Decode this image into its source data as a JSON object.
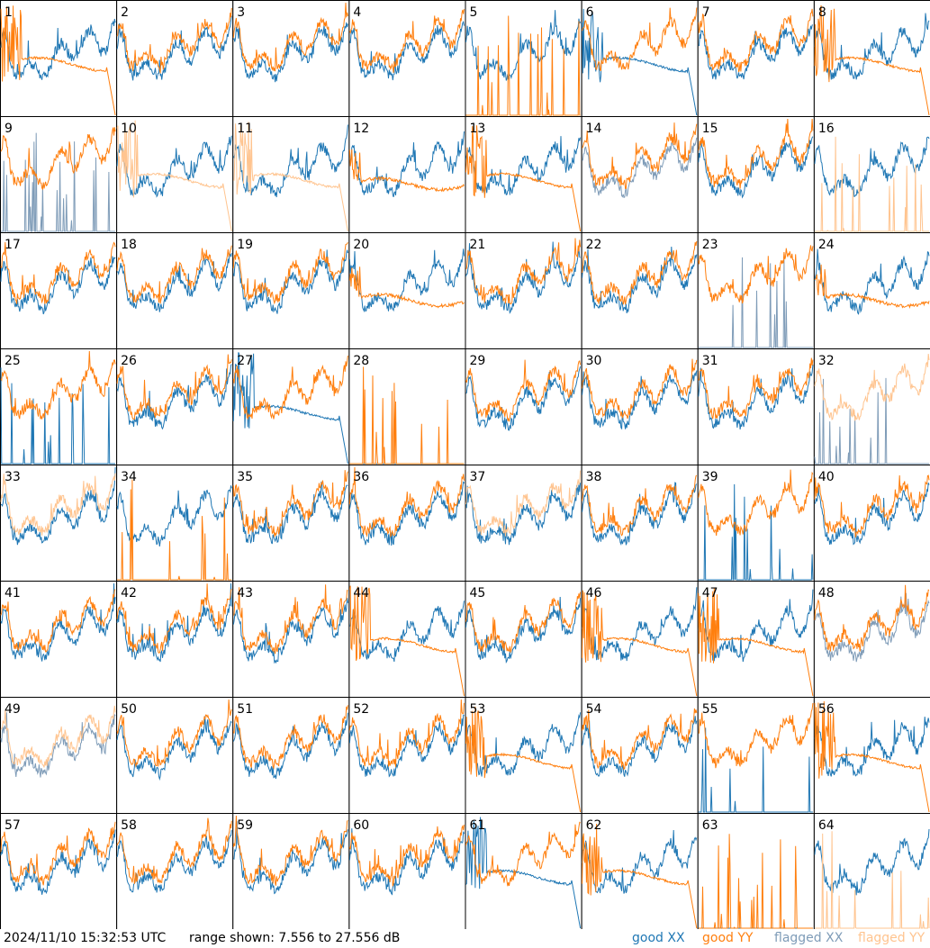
{
  "footer": {
    "timestamp": "2024/11/10 15:32:53 UTC",
    "range_text": "range shown: 7.556 to 27.556 dB"
  },
  "legend": [
    {
      "label": "good XX",
      "color": "#1f77b4"
    },
    {
      "label": "good YY",
      "color": "#ff7f0e"
    },
    {
      "label": "flagged XX",
      "color": "#7f9cb8"
    },
    {
      "label": "flagged YY",
      "color": "#ffc48f"
    }
  ],
  "chart_data": {
    "type": "line",
    "ylim": [
      7.556,
      27.556
    ],
    "panels": [
      {
        "label": "1",
        "xx": "good",
        "yy": "good",
        "xx_shape": "normal",
        "yy_shape": "fall"
      },
      {
        "label": "2",
        "xx": "good",
        "yy": "good",
        "xx_shape": "normal",
        "yy_shape": "normal"
      },
      {
        "label": "3",
        "xx": "good",
        "yy": "good",
        "xx_shape": "normal",
        "yy_shape": "normal"
      },
      {
        "label": "4",
        "xx": "good",
        "yy": "good",
        "xx_shape": "normal",
        "yy_shape": "normal"
      },
      {
        "label": "5",
        "xx": "good",
        "yy": "good",
        "xx_shape": "normal",
        "yy_shape": "spikes"
      },
      {
        "label": "6",
        "xx": "good",
        "yy": "good",
        "xx_shape": "fall",
        "yy_shape": "normal"
      },
      {
        "label": "7",
        "xx": "good",
        "yy": "good",
        "xx_shape": "normal",
        "yy_shape": "normal"
      },
      {
        "label": "8",
        "xx": "good",
        "yy": "good",
        "xx_shape": "normal",
        "yy_shape": "fall"
      },
      {
        "label": "9",
        "xx": "flagged",
        "yy": "good",
        "xx_shape": "spikes",
        "yy_shape": "normal"
      },
      {
        "label": "10",
        "xx": "good",
        "yy": "flagged",
        "xx_shape": "normal",
        "yy_shape": "fall"
      },
      {
        "label": "11",
        "xx": "good",
        "yy": "flagged",
        "xx_shape": "normal",
        "yy_shape": "fall"
      },
      {
        "label": "12",
        "xx": "good",
        "yy": "good",
        "xx_shape": "normal",
        "yy_shape": "flat"
      },
      {
        "label": "13",
        "xx": "good",
        "yy": "good",
        "xx_shape": "normal",
        "yy_shape": "fall"
      },
      {
        "label": "14",
        "xx": "flagged",
        "yy": "good",
        "xx_shape": "normal",
        "yy_shape": "normal"
      },
      {
        "label": "15",
        "xx": "good",
        "yy": "good",
        "xx_shape": "normal",
        "yy_shape": "normal"
      },
      {
        "label": "16",
        "xx": "good",
        "yy": "flagged",
        "xx_shape": "normal",
        "yy_shape": "spikes"
      },
      {
        "label": "17",
        "xx": "good",
        "yy": "good",
        "xx_shape": "normal",
        "yy_shape": "normal"
      },
      {
        "label": "18",
        "xx": "good",
        "yy": "good",
        "xx_shape": "normal",
        "yy_shape": "normal"
      },
      {
        "label": "19",
        "xx": "good",
        "yy": "good",
        "xx_shape": "normal",
        "yy_shape": "normal"
      },
      {
        "label": "20",
        "xx": "good",
        "yy": "good",
        "xx_shape": "normal",
        "yy_shape": "flat"
      },
      {
        "label": "21",
        "xx": "good",
        "yy": "good",
        "xx_shape": "normal",
        "yy_shape": "normal"
      },
      {
        "label": "22",
        "xx": "good",
        "yy": "good",
        "xx_shape": "normal",
        "yy_shape": "normal"
      },
      {
        "label": "23",
        "xx": "flagged",
        "yy": "good",
        "xx_shape": "spikes",
        "yy_shape": "normal"
      },
      {
        "label": "24",
        "xx": "good",
        "yy": "good",
        "xx_shape": "normal",
        "yy_shape": "flat"
      },
      {
        "label": "25",
        "xx": "good",
        "yy": "good",
        "xx_shape": "spikes",
        "yy_shape": "normal"
      },
      {
        "label": "26",
        "xx": "good",
        "yy": "good",
        "xx_shape": "normal",
        "yy_shape": "normal"
      },
      {
        "label": "27",
        "xx": "good",
        "yy": "good",
        "xx_shape": "fall",
        "yy_shape": "normal"
      },
      {
        "label": "28",
        "xx": "good",
        "yy": "good",
        "xx_shape": "none",
        "yy_shape": "spikes"
      },
      {
        "label": "29",
        "xx": "good",
        "yy": "good",
        "xx_shape": "normal",
        "yy_shape": "normal"
      },
      {
        "label": "30",
        "xx": "good",
        "yy": "good",
        "xx_shape": "normal",
        "yy_shape": "normal"
      },
      {
        "label": "31",
        "xx": "good",
        "yy": "good",
        "xx_shape": "normal",
        "yy_shape": "normal"
      },
      {
        "label": "32",
        "xx": "flagged",
        "yy": "flagged",
        "xx_shape": "spikes",
        "yy_shape": "normal"
      },
      {
        "label": "33",
        "xx": "good",
        "yy": "flagged",
        "xx_shape": "normal",
        "yy_shape": "normal"
      },
      {
        "label": "34",
        "xx": "good",
        "yy": "good",
        "xx_shape": "normal",
        "yy_shape": "spikes"
      },
      {
        "label": "35",
        "xx": "good",
        "yy": "good",
        "xx_shape": "normal",
        "yy_shape": "normal"
      },
      {
        "label": "36",
        "xx": "good",
        "yy": "good",
        "xx_shape": "normal",
        "yy_shape": "normal"
      },
      {
        "label": "37",
        "xx": "good",
        "yy": "flagged",
        "xx_shape": "normal",
        "yy_shape": "normal"
      },
      {
        "label": "38",
        "xx": "good",
        "yy": "good",
        "xx_shape": "normal",
        "yy_shape": "normal"
      },
      {
        "label": "39",
        "xx": "good",
        "yy": "good",
        "xx_shape": "spikes",
        "yy_shape": "normal"
      },
      {
        "label": "40",
        "xx": "good",
        "yy": "good",
        "xx_shape": "normal",
        "yy_shape": "normal"
      },
      {
        "label": "41",
        "xx": "good",
        "yy": "good",
        "xx_shape": "normal",
        "yy_shape": "normal"
      },
      {
        "label": "42",
        "xx": "good",
        "yy": "good",
        "xx_shape": "normal",
        "yy_shape": "normal"
      },
      {
        "label": "43",
        "xx": "good",
        "yy": "good",
        "xx_shape": "normal",
        "yy_shape": "normal"
      },
      {
        "label": "44",
        "xx": "good",
        "yy": "good",
        "xx_shape": "normal",
        "yy_shape": "fall"
      },
      {
        "label": "45",
        "xx": "good",
        "yy": "good",
        "xx_shape": "normal",
        "yy_shape": "normal"
      },
      {
        "label": "46",
        "xx": "good",
        "yy": "good",
        "xx_shape": "normal",
        "yy_shape": "fall"
      },
      {
        "label": "47",
        "xx": "good",
        "yy": "good",
        "xx_shape": "normal",
        "yy_shape": "fall"
      },
      {
        "label": "48",
        "xx": "flagged",
        "yy": "good",
        "xx_shape": "normal",
        "yy_shape": "normal"
      },
      {
        "label": "49",
        "xx": "flagged",
        "yy": "flagged",
        "xx_shape": "normal",
        "yy_shape": "normal"
      },
      {
        "label": "50",
        "xx": "good",
        "yy": "good",
        "xx_shape": "normal",
        "yy_shape": "normal"
      },
      {
        "label": "51",
        "xx": "good",
        "yy": "good",
        "xx_shape": "normal",
        "yy_shape": "normal"
      },
      {
        "label": "52",
        "xx": "good",
        "yy": "good",
        "xx_shape": "normal",
        "yy_shape": "normal"
      },
      {
        "label": "53",
        "xx": "good",
        "yy": "good",
        "xx_shape": "normal",
        "yy_shape": "fall"
      },
      {
        "label": "54",
        "xx": "good",
        "yy": "good",
        "xx_shape": "normal",
        "yy_shape": "normal"
      },
      {
        "label": "55",
        "xx": "good",
        "yy": "good",
        "xx_shape": "spikes",
        "yy_shape": "normal"
      },
      {
        "label": "56",
        "xx": "good",
        "yy": "good",
        "xx_shape": "normal",
        "yy_shape": "fall"
      },
      {
        "label": "57",
        "xx": "good",
        "yy": "good",
        "xx_shape": "normal",
        "yy_shape": "normal"
      },
      {
        "label": "58",
        "xx": "good",
        "yy": "good",
        "xx_shape": "normal",
        "yy_shape": "normal"
      },
      {
        "label": "59",
        "xx": "good",
        "yy": "good",
        "xx_shape": "normal",
        "yy_shape": "normal"
      },
      {
        "label": "60",
        "xx": "good",
        "yy": "good",
        "xx_shape": "normal",
        "yy_shape": "normal"
      },
      {
        "label": "61",
        "xx": "good",
        "yy": "good",
        "xx_shape": "fall",
        "yy_shape": "normal"
      },
      {
        "label": "62",
        "xx": "good",
        "yy": "good",
        "xx_shape": "normal",
        "yy_shape": "fall"
      },
      {
        "label": "63",
        "xx": "good",
        "yy": "good",
        "xx_shape": "none",
        "yy_shape": "spikes"
      },
      {
        "label": "64",
        "xx": "good",
        "yy": "flagged",
        "xx_shape": "normal",
        "yy_shape": "spikes"
      }
    ]
  }
}
